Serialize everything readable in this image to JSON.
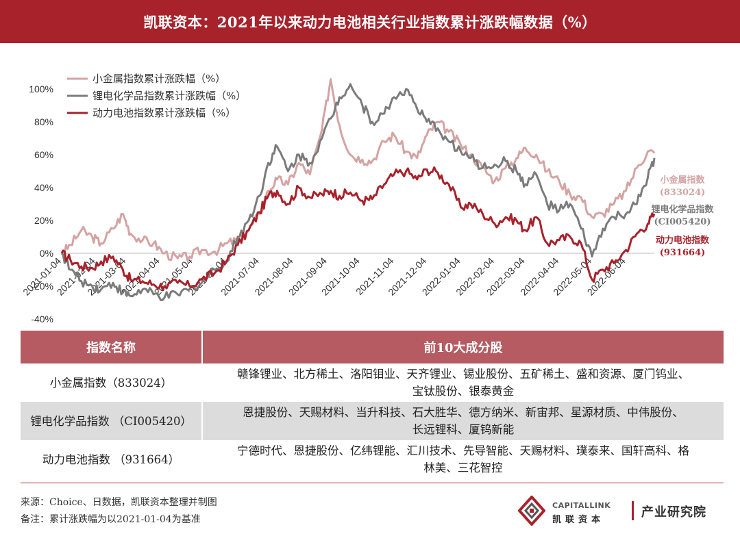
{
  "header": {
    "title": "凯联资本：2021年以来动力电池相关行业指数累计涨跌幅数据（%）"
  },
  "chart_data": {
    "type": "line",
    "ylim": [
      -40,
      100
    ],
    "yticks": [
      "100%",
      "80%",
      "60%",
      "40%",
      "20%",
      "0%",
      "-20%",
      "-40%"
    ],
    "ytick_values": [
      100,
      80,
      60,
      40,
      20,
      0,
      -20,
      -40
    ],
    "xlim": [
      "2021-01-04",
      "2022-06-30"
    ],
    "xticks": [
      "2021-01-04",
      "2021-02-04",
      "2021-03-04",
      "2021-04-04",
      "2021-05-04",
      "2021-06-04",
      "2021-07-04",
      "2021-08-04",
      "2021-09-04",
      "2021-10-04",
      "2021-11-04",
      "2021-12-04",
      "2022-01-04",
      "2022-02-04",
      "2022-03-04",
      "2022-04-04",
      "2022-05-04",
      "2022-06-04"
    ],
    "legend_position": "top-left",
    "series": [
      {
        "name": "小金属指数累计涨跌幅（%）",
        "color": "#d4a3a3",
        "end_label": "小金属指数",
        "end_code": "(833024)",
        "points": [
          [
            "2021-01-04",
            0
          ],
          [
            "2021-01-12",
            5
          ],
          [
            "2021-01-22",
            14
          ],
          [
            "2021-02-01",
            10
          ],
          [
            "2021-02-09",
            6
          ],
          [
            "2021-02-20",
            15
          ],
          [
            "2021-03-01",
            24
          ],
          [
            "2021-03-08",
            12
          ],
          [
            "2021-03-19",
            8
          ],
          [
            "2021-03-29",
            6
          ],
          [
            "2021-04-08",
            0
          ],
          [
            "2021-04-20",
            -3
          ],
          [
            "2021-05-01",
            -2
          ],
          [
            "2021-05-12",
            2
          ],
          [
            "2021-05-24",
            1
          ],
          [
            "2021-06-04",
            6
          ],
          [
            "2021-06-14",
            8
          ],
          [
            "2021-06-24",
            14
          ],
          [
            "2021-07-04",
            24
          ],
          [
            "2021-07-12",
            38
          ],
          [
            "2021-07-20",
            45
          ],
          [
            "2021-07-30",
            42
          ],
          [
            "2021-08-09",
            55
          ],
          [
            "2021-08-19",
            48
          ],
          [
            "2021-08-30",
            75
          ],
          [
            "2021-09-07",
            106
          ],
          [
            "2021-09-15",
            78
          ],
          [
            "2021-09-25",
            60
          ],
          [
            "2021-10-06",
            57
          ],
          [
            "2021-10-15",
            56
          ],
          [
            "2021-10-26",
            68
          ],
          [
            "2021-11-04",
            72
          ],
          [
            "2021-11-15",
            62
          ],
          [
            "2021-11-25",
            58
          ],
          [
            "2021-12-04",
            72
          ],
          [
            "2021-12-14",
            80
          ],
          [
            "2021-12-24",
            74
          ],
          [
            "2022-01-04",
            66
          ],
          [
            "2022-01-13",
            60
          ],
          [
            "2022-01-24",
            52
          ],
          [
            "2022-02-04",
            44
          ],
          [
            "2022-02-14",
            52
          ],
          [
            "2022-02-24",
            58
          ],
          [
            "2022-03-04",
            64
          ],
          [
            "2022-03-14",
            60
          ],
          [
            "2022-03-24",
            50
          ],
          [
            "2022-04-04",
            44
          ],
          [
            "2022-04-14",
            36
          ],
          [
            "2022-04-24",
            34
          ],
          [
            "2022-05-04",
            22
          ],
          [
            "2022-05-14",
            24
          ],
          [
            "2022-05-24",
            30
          ],
          [
            "2022-06-04",
            38
          ],
          [
            "2022-06-14",
            52
          ],
          [
            "2022-06-24",
            62
          ],
          [
            "2022-06-30",
            61
          ]
        ]
      },
      {
        "name": "锂电化学品指数累计涨跌幅（%）",
        "color": "#7b7b7b",
        "end_label": "锂电化学品指数",
        "end_code": "(CI005420)",
        "points": [
          [
            "2021-01-04",
            0
          ],
          [
            "2021-01-12",
            -10
          ],
          [
            "2021-01-22",
            -17
          ],
          [
            "2021-02-01",
            -20
          ],
          [
            "2021-02-09",
            -22
          ],
          [
            "2021-02-20",
            -18
          ],
          [
            "2021-03-01",
            -24
          ],
          [
            "2021-03-08",
            -26
          ],
          [
            "2021-03-19",
            -22
          ],
          [
            "2021-03-29",
            -25
          ],
          [
            "2021-04-08",
            -27
          ],
          [
            "2021-04-20",
            -25
          ],
          [
            "2021-05-01",
            -22
          ],
          [
            "2021-05-12",
            -18
          ],
          [
            "2021-05-24",
            -10
          ],
          [
            "2021-06-04",
            -5
          ],
          [
            "2021-06-14",
            10
          ],
          [
            "2021-06-24",
            20
          ],
          [
            "2021-07-04",
            35
          ],
          [
            "2021-07-12",
            55
          ],
          [
            "2021-07-20",
            65
          ],
          [
            "2021-07-30",
            50
          ],
          [
            "2021-08-09",
            60
          ],
          [
            "2021-08-19",
            55
          ],
          [
            "2021-08-30",
            70
          ],
          [
            "2021-09-07",
            82
          ],
          [
            "2021-09-15",
            95
          ],
          [
            "2021-09-25",
            103
          ],
          [
            "2021-10-06",
            90
          ],
          [
            "2021-10-15",
            80
          ],
          [
            "2021-10-26",
            85
          ],
          [
            "2021-11-04",
            95
          ],
          [
            "2021-11-15",
            100
          ],
          [
            "2021-11-25",
            88
          ],
          [
            "2021-12-04",
            80
          ],
          [
            "2021-12-14",
            76
          ],
          [
            "2021-12-24",
            68
          ],
          [
            "2022-01-04",
            62
          ],
          [
            "2022-01-13",
            58
          ],
          [
            "2022-01-24",
            52
          ],
          [
            "2022-02-04",
            54
          ],
          [
            "2022-02-14",
            56
          ],
          [
            "2022-02-24",
            50
          ],
          [
            "2022-03-04",
            42
          ],
          [
            "2022-03-14",
            48
          ],
          [
            "2022-03-24",
            30
          ],
          [
            "2022-04-04",
            26
          ],
          [
            "2022-04-14",
            30
          ],
          [
            "2022-04-24",
            15
          ],
          [
            "2022-05-04",
            -2
          ],
          [
            "2022-05-14",
            15
          ],
          [
            "2022-05-24",
            22
          ],
          [
            "2022-06-04",
            24
          ],
          [
            "2022-06-14",
            30
          ],
          [
            "2022-06-24",
            46
          ],
          [
            "2022-06-30",
            58
          ]
        ]
      },
      {
        "name": "动力电池指数累计涨跌幅（%）",
        "color": "#a8222b",
        "end_label": "动力电池指数",
        "end_code": "(931664)",
        "points": [
          [
            "2021-01-04",
            0
          ],
          [
            "2021-01-12",
            -4
          ],
          [
            "2021-01-22",
            -8
          ],
          [
            "2021-02-01",
            -9
          ],
          [
            "2021-02-09",
            -5
          ],
          [
            "2021-02-20",
            -2
          ],
          [
            "2021-03-01",
            -10
          ],
          [
            "2021-03-08",
            -16
          ],
          [
            "2021-03-19",
            -17
          ],
          [
            "2021-03-29",
            -19
          ],
          [
            "2021-04-08",
            -20
          ],
          [
            "2021-04-20",
            -18
          ],
          [
            "2021-05-01",
            -20
          ],
          [
            "2021-05-12",
            -16
          ],
          [
            "2021-05-24",
            -12
          ],
          [
            "2021-06-04",
            -5
          ],
          [
            "2021-06-14",
            5
          ],
          [
            "2021-06-24",
            14
          ],
          [
            "2021-07-04",
            25
          ],
          [
            "2021-07-12",
            35
          ],
          [
            "2021-07-20",
            38
          ],
          [
            "2021-07-30",
            30
          ],
          [
            "2021-08-09",
            40
          ],
          [
            "2021-08-19",
            34
          ],
          [
            "2021-08-30",
            36
          ],
          [
            "2021-09-07",
            38
          ],
          [
            "2021-09-15",
            35
          ],
          [
            "2021-09-25",
            37
          ],
          [
            "2021-10-06",
            32
          ],
          [
            "2021-10-15",
            33
          ],
          [
            "2021-10-26",
            42
          ],
          [
            "2021-11-04",
            48
          ],
          [
            "2021-11-15",
            50
          ],
          [
            "2021-11-25",
            45
          ],
          [
            "2021-12-04",
            51
          ],
          [
            "2021-12-14",
            49
          ],
          [
            "2021-12-24",
            42
          ],
          [
            "2022-01-04",
            28
          ],
          [
            "2022-01-13",
            30
          ],
          [
            "2022-01-24",
            24
          ],
          [
            "2022-02-04",
            18
          ],
          [
            "2022-02-14",
            22
          ],
          [
            "2022-02-24",
            20
          ],
          [
            "2022-03-04",
            14
          ],
          [
            "2022-03-14",
            22
          ],
          [
            "2022-03-24",
            6
          ],
          [
            "2022-04-04",
            8
          ],
          [
            "2022-04-14",
            10
          ],
          [
            "2022-04-24",
            6
          ],
          [
            "2022-05-04",
            -16
          ],
          [
            "2022-05-14",
            -10
          ],
          [
            "2022-05-24",
            -6
          ],
          [
            "2022-06-04",
            2
          ],
          [
            "2022-06-14",
            12
          ],
          [
            "2022-06-24",
            18
          ],
          [
            "2022-06-30",
            24
          ]
        ]
      }
    ]
  },
  "table": {
    "headers": [
      "指数名称",
      "前10大成分股"
    ],
    "rows": [
      {
        "name": "小金属指数（833024）",
        "line1": "赣锋锂业、北方稀土、洛阳钼业、天齐锂业、锡业股份、五矿稀土、盛和资源、厦门钨业、",
        "line2": "宝钛股份、银泰黄金"
      },
      {
        "name": "锂电化学品指数 （CI005420）",
        "line1": "恩捷股份、天赐材料、当升科技、石大胜华、德方纳米、新宙邦、星源材质、中伟股份、",
        "line2": "长远锂科、厦钨新能"
      },
      {
        "name": "动力电池指数 （931664）",
        "line1": "宁德时代、恩捷股份、亿纬锂能、汇川技术、先导智能、天赐材料、璞泰来、国轩高科、格",
        "line2": "林美、三花智控"
      }
    ]
  },
  "footer": {
    "source": "来源：Choice、日数据，凯联资本整理并制图",
    "note": "备注：累计涨跌幅为以2021-01-04为基准",
    "logo_en": "CAPITALLINK",
    "logo_cn": "凯联资本",
    "dept": "产业研究院"
  }
}
